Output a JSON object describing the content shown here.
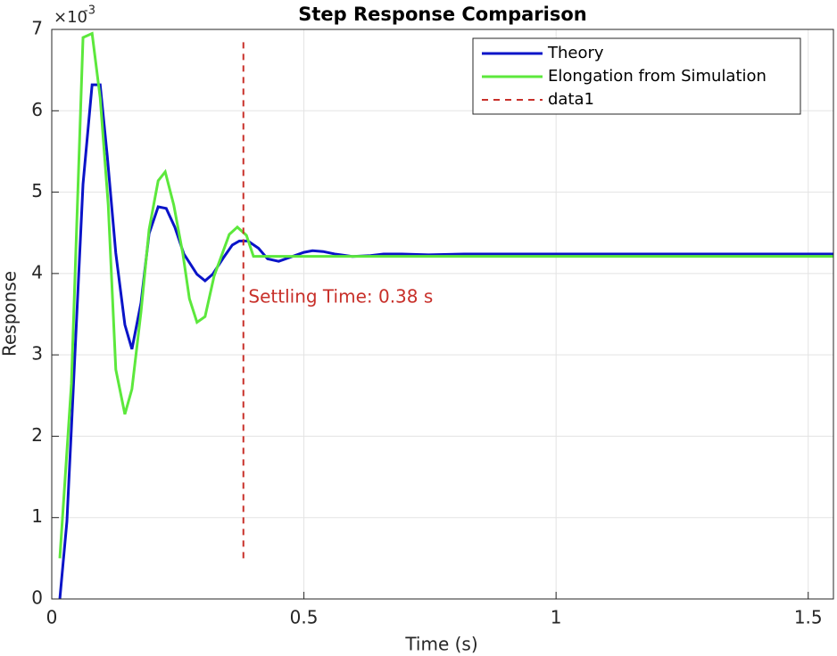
{
  "chart_data": {
    "type": "line",
    "title": "Step Response Comparison",
    "x_label": "Time (s)",
    "y_label": "Response",
    "y_multiplier_base": "×10",
    "y_multiplier_exp": "-3",
    "xlim": [
      0,
      1.55
    ],
    "ylim": [
      0,
      7
    ],
    "xticks": [
      0,
      0.5,
      1,
      1.5
    ],
    "yticks": [
      0,
      1,
      2,
      3,
      4,
      5,
      6,
      7
    ],
    "grid": true,
    "legend": "top-right",
    "series": [
      {
        "name": "Theory",
        "color": "#0a14c8",
        "dash": false,
        "x": [
          0.016,
          0.03,
          0.039,
          0.062,
          0.08,
          0.096,
          0.11,
          0.127,
          0.145,
          0.159,
          0.177,
          0.193,
          0.211,
          0.227,
          0.244,
          0.262,
          0.288,
          0.304,
          0.319,
          0.34,
          0.358,
          0.372,
          0.389,
          0.41,
          0.428,
          0.45,
          0.473,
          0.5,
          0.517,
          0.538,
          0.561,
          0.596,
          0.632,
          0.658,
          0.694,
          0.747,
          0.818,
          1.55
        ],
        "values": [
          0,
          0.95,
          2.1,
          5.1,
          6.32,
          6.32,
          5.45,
          4.25,
          3.37,
          3.07,
          3.64,
          4.49,
          4.82,
          4.8,
          4.57,
          4.24,
          3.99,
          3.91,
          3.99,
          4.19,
          4.35,
          4.4,
          4.4,
          4.31,
          4.18,
          4.15,
          4.2,
          4.26,
          4.28,
          4.27,
          4.24,
          4.21,
          4.22,
          4.24,
          4.24,
          4.23,
          4.24,
          4.24
        ]
      },
      {
        "name": "Elongation from Simulation",
        "color": "#5ce83c",
        "dash": false,
        "x": [
          0.016,
          0.039,
          0.062,
          0.08,
          0.096,
          0.112,
          0.127,
          0.145,
          0.159,
          0.177,
          0.193,
          0.211,
          0.225,
          0.242,
          0.26,
          0.273,
          0.288,
          0.304,
          0.322,
          0.352,
          0.368,
          0.386,
          0.4,
          1.55
        ],
        "values": [
          0.5,
          2.65,
          6.9,
          6.95,
          6.16,
          4.84,
          2.82,
          2.27,
          2.58,
          3.53,
          4.54,
          5.14,
          5.25,
          4.84,
          4.24,
          3.69,
          3.4,
          3.47,
          3.97,
          4.48,
          4.57,
          4.47,
          4.21,
          4.21
        ]
      },
      {
        "name": "data1",
        "color": "#c8302a",
        "dash": true,
        "x": [
          0.38,
          0.38
        ],
        "values": [
          0.5,
          6.9
        ]
      }
    ],
    "annotation": {
      "text": "Settling Time: 0.38 s",
      "x": 0.39,
      "y": 3.7,
      "color": "#c8302a"
    }
  }
}
